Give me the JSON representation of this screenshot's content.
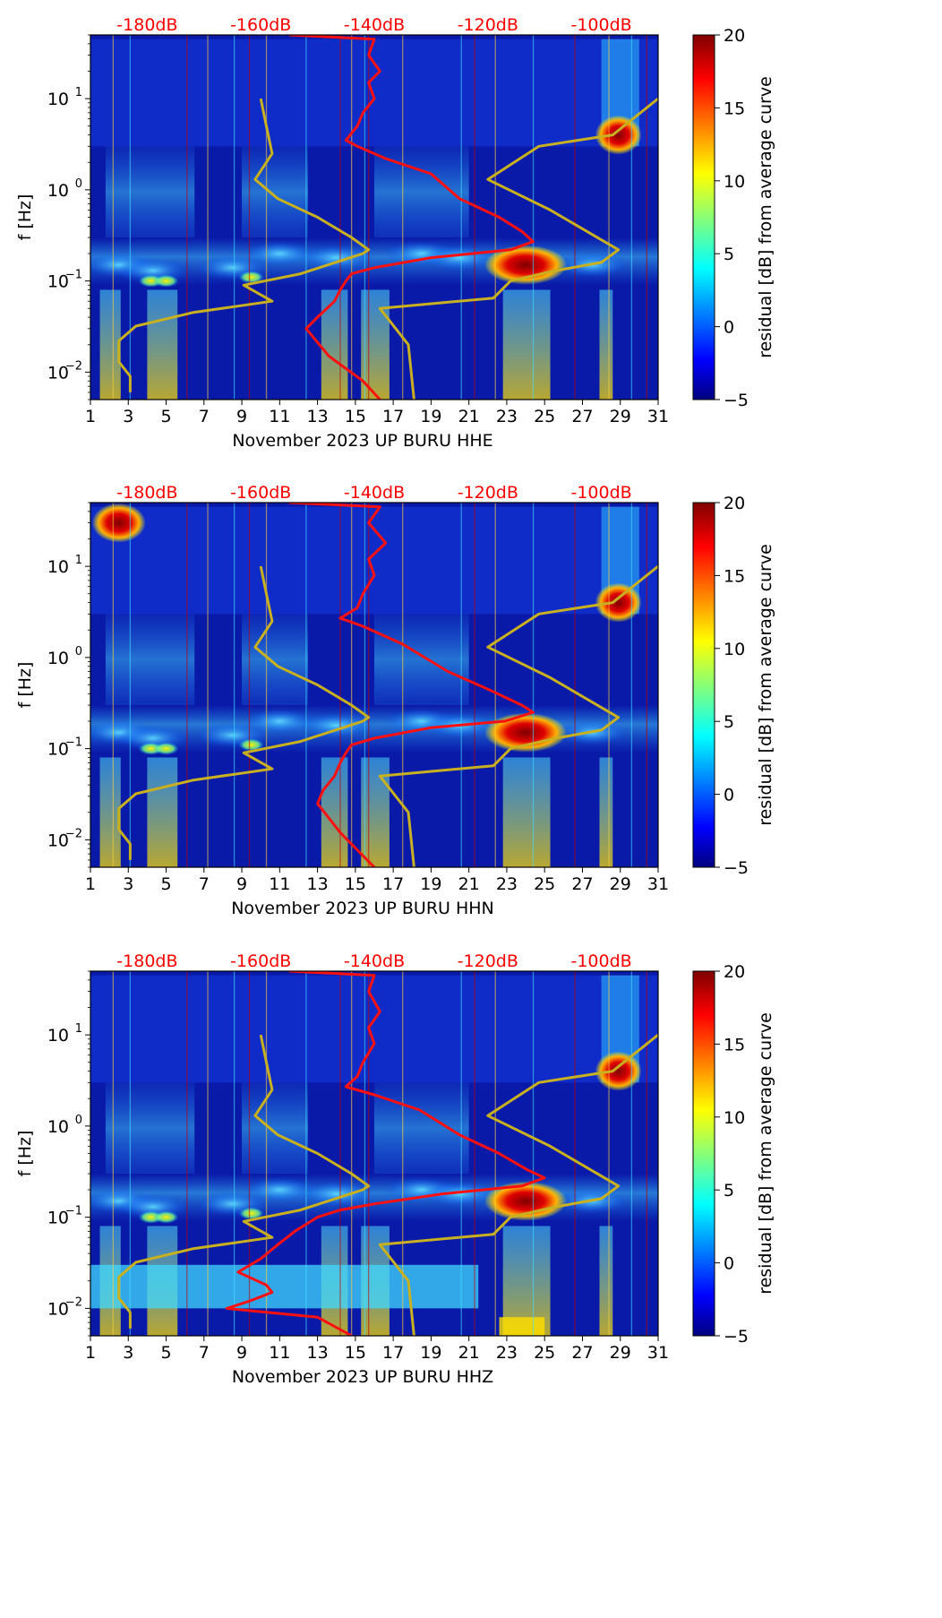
{
  "chart_data": [
    {
      "type": "heatmap",
      "xlabel": "November 2023 UP BURU  HHE",
      "ylabel": "f [Hz]",
      "colorbar_label": "residual [dB] from average curve",
      "colorbar_ticks": [
        "20",
        "15",
        "10",
        "5",
        "0",
        "−5"
      ],
      "clim": [
        -5,
        20
      ],
      "x_ticks": [
        "1",
        "3",
        "5",
        "7",
        "9",
        "11",
        "13",
        "15",
        "17",
        "19",
        "21",
        "23",
        "25",
        "27",
        "29",
        "31"
      ],
      "y_ticks": [
        "10",
        "10",
        "10",
        "10"
      ],
      "y_tick_exponents": [
        "1",
        "0",
        "−1",
        "−2"
      ],
      "db_ticks": [
        "-180dB",
        "-160dB",
        "-140dB",
        "-120dB",
        "-100dB"
      ],
      "xlim": [
        1,
        31
      ],
      "ylim_hz": [
        0.005,
        50
      ],
      "yscale": "log",
      "db_range": [
        -190,
        -90
      ],
      "red_curve": [
        [
          -155,
          50
        ],
        [
          -140,
          45
        ],
        [
          -141,
          30
        ],
        [
          -139,
          20
        ],
        [
          -141,
          15
        ],
        [
          -140,
          10
        ],
        [
          -142,
          7
        ],
        [
          -143,
          5
        ],
        [
          -145,
          3.5
        ],
        [
          -143,
          3
        ],
        [
          -138,
          2.2
        ],
        [
          -130,
          1.5
        ],
        [
          -125,
          0.8
        ],
        [
          -118,
          0.5
        ],
        [
          -114,
          0.35
        ],
        [
          -112,
          0.27
        ],
        [
          -116,
          0.22
        ],
        [
          -130,
          0.18
        ],
        [
          -140,
          0.14
        ],
        [
          -144,
          0.12
        ],
        [
          -145,
          0.1
        ],
        [
          -146,
          0.08
        ],
        [
          -147,
          0.06
        ],
        [
          -150,
          0.04
        ],
        [
          -152,
          0.03
        ],
        [
          -148,
          0.015
        ],
        [
          -142,
          0.008
        ],
        [
          -139,
          0.005
        ]
      ],
      "yellow_curve": [
        [
          -160,
          10
        ],
        [
          -159,
          5
        ],
        [
          -158,
          2.5
        ],
        [
          -161,
          1.3
        ],
        [
          -157,
          0.8
        ],
        [
          -150,
          0.5
        ],
        [
          -144,
          0.3
        ],
        [
          -141,
          0.22
        ],
        [
          -142,
          0.2
        ],
        [
          -153,
          0.12
        ],
        [
          -163,
          0.09
        ],
        [
          -158,
          0.06
        ],
        [
          -172,
          0.045
        ],
        [
          -182,
          0.032
        ],
        [
          -185,
          0.022
        ],
        [
          -185,
          0.013
        ],
        [
          -183,
          0.009
        ],
        [
          -183,
          0.006
        ]
      ],
      "yellow_curve_right": [
        [
          -90,
          10
        ],
        [
          -98,
          4
        ],
        [
          -111,
          3
        ],
        [
          -120,
          1.3
        ],
        [
          -109,
          0.6
        ],
        [
          -97,
          0.22
        ],
        [
          -100,
          0.16
        ],
        [
          -108,
          0.13
        ],
        [
          -116,
          0.1
        ],
        [
          -119,
          0.065
        ],
        [
          -139,
          0.05
        ],
        [
          -134,
          0.02
        ],
        [
          -133,
          0.005
        ]
      ]
    },
    {
      "type": "heatmap",
      "xlabel": "November 2023 UP BURU  HHN",
      "ylabel": "f [Hz]",
      "colorbar_label": "residual [dB] from average curve",
      "colorbar_ticks": [
        "20",
        "15",
        "10",
        "5",
        "0",
        "−5"
      ],
      "clim": [
        -5,
        20
      ],
      "x_ticks": [
        "1",
        "3",
        "5",
        "7",
        "9",
        "11",
        "13",
        "15",
        "17",
        "19",
        "21",
        "23",
        "25",
        "27",
        "29",
        "31"
      ],
      "y_ticks": [
        "10",
        "10",
        "10",
        "10"
      ],
      "y_tick_exponents": [
        "1",
        "0",
        "−1",
        "−2"
      ],
      "db_ticks": [
        "-180dB",
        "-160dB",
        "-140dB",
        "-120dB",
        "-100dB"
      ],
      "xlim": [
        1,
        31
      ],
      "ylim_hz": [
        0.005,
        50
      ],
      "yscale": "log",
      "db_range": [
        -190,
        -90
      ],
      "red_curve": [
        [
          -155,
          50
        ],
        [
          -139,
          45
        ],
        [
          -141,
          30
        ],
        [
          -138,
          18
        ],
        [
          -141,
          12
        ],
        [
          -140,
          8
        ],
        [
          -142,
          5
        ],
        [
          -143,
          3.5
        ],
        [
          -146,
          2.7
        ],
        [
          -142,
          2.2
        ],
        [
          -135,
          1.4
        ],
        [
          -127,
          0.7
        ],
        [
          -120,
          0.45
        ],
        [
          -114,
          0.3
        ],
        [
          -112,
          0.25
        ],
        [
          -117,
          0.2
        ],
        [
          -130,
          0.17
        ],
        [
          -140,
          0.13
        ],
        [
          -144,
          0.11
        ],
        [
          -145,
          0.09
        ],
        [
          -146,
          0.07
        ],
        [
          -147,
          0.05
        ],
        [
          -149,
          0.035
        ],
        [
          -150,
          0.025
        ],
        [
          -146,
          0.012
        ],
        [
          -140,
          0.005
        ]
      ],
      "yellow_curve": [
        [
          -160,
          10
        ],
        [
          -159,
          5
        ],
        [
          -158,
          2.5
        ],
        [
          -161,
          1.3
        ],
        [
          -157,
          0.8
        ],
        [
          -150,
          0.5
        ],
        [
          -144,
          0.3
        ],
        [
          -141,
          0.22
        ],
        [
          -142,
          0.2
        ],
        [
          -153,
          0.12
        ],
        [
          -163,
          0.09
        ],
        [
          -158,
          0.06
        ],
        [
          -172,
          0.045
        ],
        [
          -182,
          0.032
        ],
        [
          -185,
          0.022
        ],
        [
          -185,
          0.013
        ],
        [
          -183,
          0.009
        ],
        [
          -183,
          0.006
        ]
      ],
      "yellow_curve_right": [
        [
          -90,
          10
        ],
        [
          -98,
          4
        ],
        [
          -111,
          3
        ],
        [
          -120,
          1.3
        ],
        [
          -109,
          0.6
        ],
        [
          -97,
          0.22
        ],
        [
          -100,
          0.16
        ],
        [
          -108,
          0.13
        ],
        [
          -116,
          0.1
        ],
        [
          -119,
          0.065
        ],
        [
          -139,
          0.05
        ],
        [
          -134,
          0.02
        ],
        [
          -133,
          0.005
        ]
      ]
    },
    {
      "type": "heatmap",
      "xlabel": "November 2023 UP BURU  HHZ",
      "ylabel": "f [Hz]",
      "colorbar_label": "residual [dB] from average curve",
      "colorbar_ticks": [
        "20",
        "15",
        "10",
        "5",
        "0",
        "−5"
      ],
      "clim": [
        -5,
        20
      ],
      "x_ticks": [
        "1",
        "3",
        "5",
        "7",
        "9",
        "11",
        "13",
        "15",
        "17",
        "19",
        "21",
        "23",
        "25",
        "27",
        "29",
        "31"
      ],
      "y_ticks": [
        "10",
        "10",
        "10",
        "10"
      ],
      "y_tick_exponents": [
        "1",
        "0",
        "−1",
        "−2"
      ],
      "db_ticks": [
        "-180dB",
        "-160dB",
        "-140dB",
        "-120dB",
        "-100dB"
      ],
      "xlim": [
        1,
        31
      ],
      "ylim_hz": [
        0.005,
        50
      ],
      "yscale": "log",
      "db_range": [
        -190,
        -90
      ],
      "red_curve": [
        [
          -155,
          50
        ],
        [
          -140,
          45
        ],
        [
          -141,
          30
        ],
        [
          -139,
          18
        ],
        [
          -141,
          12
        ],
        [
          -140,
          8
        ],
        [
          -142,
          5
        ],
        [
          -143,
          3.5
        ],
        [
          -145,
          2.7
        ],
        [
          -140,
          2.2
        ],
        [
          -132,
          1.5
        ],
        [
          -125,
          0.8
        ],
        [
          -118,
          0.5
        ],
        [
          -113,
          0.33
        ],
        [
          -110,
          0.27
        ],
        [
          -114,
          0.22
        ],
        [
          -128,
          0.18
        ],
        [
          -140,
          0.14
        ],
        [
          -146,
          0.12
        ],
        [
          -150,
          0.1
        ],
        [
          -154,
          0.07
        ],
        [
          -157,
          0.05
        ],
        [
          -160,
          0.035
        ],
        [
          -164,
          0.025
        ],
        [
          -159,
          0.018
        ],
        [
          -158,
          0.015
        ],
        [
          -162,
          0.012
        ],
        [
          -166,
          0.01
        ],
        [
          -150,
          0.008
        ],
        [
          -144,
          0.005
        ]
      ],
      "yellow_curve": [
        [
          -160,
          10
        ],
        [
          -159,
          5
        ],
        [
          -158,
          2.5
        ],
        [
          -161,
          1.3
        ],
        [
          -157,
          0.8
        ],
        [
          -150,
          0.5
        ],
        [
          -144,
          0.3
        ],
        [
          -141,
          0.22
        ],
        [
          -142,
          0.2
        ],
        [
          -153,
          0.12
        ],
        [
          -163,
          0.09
        ],
        [
          -158,
          0.06
        ],
        [
          -172,
          0.045
        ],
        [
          -182,
          0.032
        ],
        [
          -185,
          0.022
        ],
        [
          -185,
          0.013
        ],
        [
          -183,
          0.009
        ],
        [
          -183,
          0.006
        ]
      ],
      "yellow_curve_right": [
        [
          -90,
          10
        ],
        [
          -98,
          4
        ],
        [
          -111,
          3
        ],
        [
          -120,
          1.3
        ],
        [
          -109,
          0.6
        ],
        [
          -97,
          0.22
        ],
        [
          -100,
          0.16
        ],
        [
          -108,
          0.13
        ],
        [
          -116,
          0.1
        ],
        [
          -119,
          0.065
        ],
        [
          -139,
          0.05
        ],
        [
          -134,
          0.02
        ],
        [
          -133,
          0.005
        ]
      ]
    }
  ],
  "colors": {
    "colormap": [
      "#00007f",
      "#0000ff",
      "#00ffff",
      "#ffff00",
      "#ff0000",
      "#7f0000"
    ],
    "red_curve": "#ff1010",
    "yellow_curve": "#c8b020",
    "db_label": "#ff0000"
  }
}
